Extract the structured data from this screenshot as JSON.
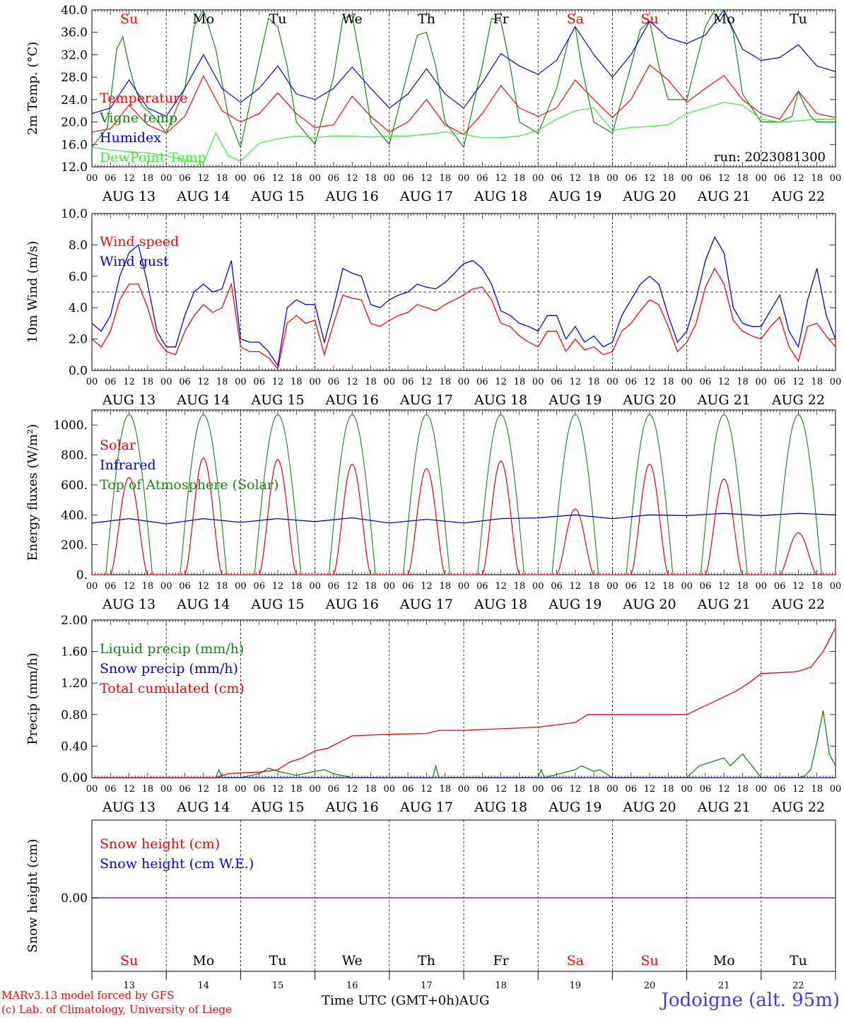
{
  "chart_data": [
    {
      "type": "line",
      "ylabel": "2m Temp. (°C)",
      "ylim": [
        12,
        40
      ],
      "yticks": [
        "12.0",
        "16.0",
        "20.0",
        "24.0",
        "28.0",
        "32.0",
        "36.0",
        "40.0"
      ],
      "annotation": "run: 2023081300",
      "day_labels_top": [
        "Su",
        "Mo",
        "Tu",
        "We",
        "Th",
        "Fr",
        "Sa",
        "Su",
        "Mo",
        "Tu"
      ],
      "series": [
        {
          "name": "Temperature",
          "color": "#ff0000",
          "x": [
            0,
            6,
            12,
            18,
            24,
            30,
            36,
            42,
            48,
            54,
            60,
            66,
            72,
            78,
            84,
            90,
            96,
            102,
            108,
            114,
            120,
            126,
            132,
            138,
            144,
            150,
            156,
            162,
            168,
            174,
            180,
            186,
            192,
            198,
            204,
            210,
            216,
            222,
            228,
            234,
            240
          ],
          "values": [
            18.2,
            18.8,
            23,
            19.5,
            18,
            21,
            28.2,
            22,
            20,
            21.5,
            25.2,
            21.5,
            19,
            19.5,
            24.6,
            21,
            18.2,
            20,
            24,
            19.5,
            17.8,
            21.5,
            26.5,
            22.5,
            21,
            22.5,
            27.5,
            24,
            20.8,
            24,
            30.2,
            27.5,
            23.5,
            26,
            28.3,
            24,
            21.5,
            20.5,
            25.5,
            21.5,
            20.8
          ]
        },
        {
          "name": "Vigne temp",
          "color": "#118811",
          "x": [
            0,
            5,
            8,
            10,
            12,
            14,
            16,
            20,
            24,
            30,
            33,
            36,
            40,
            44,
            48,
            54,
            57,
            60,
            63,
            66,
            72,
            78,
            81,
            84,
            87,
            90,
            96,
            102,
            105,
            108,
            111,
            114,
            120,
            126,
            129,
            132,
            135,
            138,
            144,
            150,
            154,
            156,
            158,
            162,
            168,
            174,
            177,
            180,
            183,
            186,
            192,
            198,
            201,
            204,
            207,
            210,
            216,
            222,
            226,
            228,
            230,
            232,
            234,
            240
          ],
          "values": [
            15.5,
            19,
            33,
            35.2,
            30,
            26,
            23,
            21,
            18,
            26,
            37,
            41,
            33,
            21,
            15.5,
            31,
            38.5,
            37,
            30,
            20,
            16,
            28,
            38.5,
            39,
            30,
            20,
            16,
            29,
            35.5,
            36,
            30,
            20,
            15.5,
            30,
            38.5,
            38,
            30,
            20,
            18,
            26,
            35,
            37,
            30,
            20,
            18,
            30,
            36.5,
            38,
            30,
            24,
            24,
            37,
            41,
            41,
            36,
            25,
            20,
            20,
            21,
            25.5,
            23,
            21,
            20,
            20
          ]
        },
        {
          "name": "Humidex",
          "color": "#0000dd",
          "x": [
            0,
            6,
            12,
            18,
            24,
            30,
            36,
            42,
            48,
            54,
            60,
            66,
            72,
            78,
            84,
            90,
            96,
            102,
            108,
            114,
            120,
            126,
            132,
            138,
            144,
            150,
            156,
            162,
            168,
            174,
            180,
            186,
            192,
            198,
            204,
            210,
            216,
            222,
            228,
            234,
            240
          ],
          "values": [
            21.5,
            22.5,
            27.5,
            22.5,
            21,
            26,
            32,
            26,
            23.5,
            26,
            30,
            25,
            24,
            26,
            29.8,
            26,
            22.5,
            25,
            29.5,
            25,
            22.5,
            27,
            32.2,
            30,
            28.5,
            31,
            37,
            32,
            28,
            32,
            38,
            35,
            34,
            35.5,
            40,
            33,
            31,
            31.5,
            33.8,
            30,
            29
          ]
        },
        {
          "name": "DewPoint Temp",
          "color": "#33ee33",
          "x": [
            0,
            6,
            12,
            18,
            24,
            30,
            36,
            40,
            44,
            48,
            54,
            60,
            66,
            72,
            78,
            84,
            90,
            96,
            102,
            108,
            114,
            120,
            126,
            132,
            138,
            144,
            150,
            156,
            162,
            168,
            174,
            180,
            186,
            192,
            198,
            204,
            210,
            216,
            222,
            228,
            234,
            240
          ],
          "values": [
            15.5,
            15,
            14.7,
            14.5,
            14,
            13.2,
            12.8,
            18,
            14,
            13,
            16.2,
            17,
            17.5,
            17.2,
            17.5,
            17.5,
            17.3,
            17.5,
            17.5,
            17.8,
            18.2,
            17.8,
            17.2,
            17.2,
            17.5,
            18.5,
            20.5,
            22,
            22.5,
            18.5,
            19,
            19.2,
            19.5,
            21.5,
            22.5,
            23.5,
            23,
            20.5,
            20,
            20.2,
            20.5,
            20.5
          ]
        }
      ]
    },
    {
      "type": "line",
      "ylabel": "10m Wind (m/s)",
      "ylim": [
        0,
        10
      ],
      "yticks": [
        "0.0",
        "2.0",
        "4.0",
        "6.0",
        "8.0",
        "10.0"
      ],
      "reference_line": 5,
      "series": [
        {
          "name": "Wind speed",
          "color": "#ff0000",
          "x": [
            0,
            3,
            6,
            9,
            12,
            15,
            18,
            21,
            24,
            27,
            30,
            33,
            36,
            39,
            42,
            45,
            48,
            51,
            54,
            57,
            60,
            63,
            66,
            69,
            72,
            75,
            78,
            81,
            84,
            87,
            90,
            93,
            96,
            99,
            102,
            105,
            108,
            111,
            114,
            117,
            120,
            123,
            126,
            129,
            132,
            135,
            138,
            141,
            144,
            147,
            150,
            153,
            156,
            159,
            162,
            165,
            168,
            171,
            174,
            177,
            180,
            183,
            186,
            189,
            192,
            195,
            198,
            201,
            204,
            207,
            210,
            213,
            216,
            219,
            222,
            225,
            228,
            231,
            234,
            237,
            240
          ],
          "values": [
            2,
            1.5,
            2.5,
            4.5,
            5.5,
            5.5,
            4,
            2,
            1.2,
            1,
            2.5,
            3.5,
            4.2,
            3.7,
            4,
            5.5,
            1.5,
            1.2,
            1.2,
            0.8,
            0.1,
            3,
            3.5,
            3,
            3.2,
            1,
            3,
            4.8,
            4.6,
            4.5,
            3,
            2.8,
            3.2,
            3.5,
            3.7,
            4.2,
            4,
            3.8,
            4.2,
            4.5,
            4.8,
            5.2,
            5.3,
            4.5,
            3,
            2.8,
            2.2,
            1.8,
            1.5,
            2.5,
            2.5,
            1.2,
            2,
            1.3,
            1.5,
            1,
            1.2,
            2.5,
            3,
            3.8,
            4.5,
            4.2,
            2.8,
            1.2,
            1.8,
            3,
            5.3,
            6.5,
            5.5,
            3.2,
            2.5,
            2.2,
            2,
            2.8,
            3.4,
            1.5,
            0.6,
            2.8,
            3,
            2.2,
            1.5
          ]
        },
        {
          "name": "Wind gust",
          "color": "#0000ee",
          "x": [
            0,
            3,
            6,
            9,
            12,
            15,
            18,
            21,
            24,
            27,
            30,
            33,
            36,
            39,
            42,
            45,
            48,
            51,
            54,
            57,
            60,
            63,
            66,
            69,
            72,
            75,
            78,
            81,
            84,
            87,
            90,
            93,
            96,
            99,
            102,
            105,
            108,
            111,
            114,
            117,
            120,
            123,
            126,
            129,
            132,
            135,
            138,
            141,
            144,
            147,
            150,
            153,
            156,
            159,
            162,
            165,
            168,
            171,
            174,
            177,
            180,
            183,
            186,
            189,
            192,
            195,
            198,
            201,
            204,
            207,
            210,
            213,
            216,
            219,
            222,
            225,
            228,
            231,
            234,
            237,
            240
          ],
          "values": [
            3,
            2.5,
            3.5,
            6,
            7.5,
            8,
            5.5,
            2.5,
            1.5,
            1.5,
            3.5,
            5,
            5.5,
            5,
            5.2,
            7,
            2,
            1.8,
            1.8,
            1.2,
            0.3,
            4,
            4.5,
            4.2,
            4.2,
            1.8,
            4,
            6.5,
            6.2,
            6,
            4.2,
            4,
            4.5,
            4.8,
            5,
            5.5,
            5.3,
            5.2,
            5.6,
            6.2,
            6.8,
            7,
            6.5,
            5.5,
            3.8,
            3.5,
            3,
            2.8,
            2.5,
            3.5,
            3.5,
            2,
            2.8,
            1.8,
            2.2,
            1.5,
            1.8,
            3.5,
            4.5,
            5.5,
            6,
            5.5,
            3.5,
            1.8,
            2.5,
            4.5,
            7,
            8.5,
            7.5,
            4,
            3,
            2.8,
            2.8,
            3.8,
            4.8,
            2.5,
            1.5,
            4.5,
            6.5,
            3.5,
            2
          ]
        }
      ]
    },
    {
      "type": "line",
      "ylabel": "Energy fluxes (W/m²)",
      "ylim": [
        0,
        1100
      ],
      "yticks": [
        "0.",
        "200.",
        "400.",
        "600.",
        "800.",
        "1000."
      ],
      "series": [
        {
          "name": "Solar",
          "color": "#ee0000",
          "day_peaks": [
            650,
            780,
            770,
            740,
            710,
            760,
            440,
            740,
            640,
            280
          ]
        },
        {
          "name": "Infrared",
          "color": "#0000dd",
          "x": [
            0,
            12,
            24,
            36,
            48,
            60,
            72,
            84,
            96,
            108,
            120,
            132,
            144,
            156,
            168,
            180,
            192,
            204,
            216,
            228,
            240
          ],
          "values": [
            345,
            375,
            340,
            375,
            350,
            375,
            355,
            380,
            345,
            370,
            345,
            375,
            380,
            400,
            375,
            400,
            395,
            410,
            395,
            410,
            400
          ]
        },
        {
          "name": "Top of Atmosphere (Solar)",
          "color": "#118811",
          "peak": 1070
        }
      ]
    },
    {
      "type": "line",
      "ylabel": "Precip (mm/h)",
      "ylim": [
        0,
        2
      ],
      "yticks": [
        "0.00",
        "0.40",
        "0.80",
        "1.20",
        "1.60",
        "2.00"
      ],
      "series": [
        {
          "name": "Liquid precip (mm/h)",
          "color": "#118811",
          "x": [
            0,
            40,
            41,
            42,
            48,
            54,
            57,
            60,
            66,
            72,
            75,
            78,
            84,
            90,
            96,
            110,
            111,
            112,
            120,
            144,
            145,
            146,
            156,
            158,
            162,
            164,
            168,
            192,
            196,
            200,
            204,
            206,
            210,
            216,
            222,
            228,
            230,
            232,
            234,
            236,
            238,
            240
          ],
          "values": [
            0,
            0,
            0.1,
            0,
            0,
            0.05,
            0.12,
            0.08,
            0.03,
            0.08,
            0.1,
            0.05,
            0,
            0,
            0,
            0,
            0.15,
            0,
            0,
            0,
            0.1,
            0,
            0.1,
            0.15,
            0.08,
            0.1,
            0,
            0,
            0.15,
            0.2,
            0.25,
            0.15,
            0.3,
            0,
            0,
            0,
            0.02,
            0.1,
            0.45,
            0.85,
            0.3,
            0.15
          ]
        },
        {
          "name": "Snow precip (mm/h)",
          "color": "#0000ee",
          "x": [
            0,
            240
          ],
          "values": [
            0,
            0
          ]
        },
        {
          "name": "Total cumulated (cm)",
          "color": "#ee0000",
          "x": [
            0,
            40,
            44,
            48,
            54,
            60,
            64,
            68,
            72,
            76,
            80,
            84,
            96,
            108,
            112,
            120,
            144,
            156,
            160,
            168,
            184,
            192,
            200,
            208,
            212,
            216,
            226,
            228,
            232,
            236,
            240
          ],
          "values": [
            0,
            0,
            0.05,
            0.06,
            0.07,
            0.1,
            0.2,
            0.25,
            0.34,
            0.37,
            0.45,
            0.53,
            0.55,
            0.56,
            0.6,
            0.6,
            0.64,
            0.7,
            0.8,
            0.8,
            0.8,
            0.8,
            0.95,
            1.1,
            1.2,
            1.32,
            1.34,
            1.35,
            1.4,
            1.6,
            1.9
          ]
        }
      ]
    },
    {
      "type": "line",
      "ylabel": "Snow height (cm)",
      "yticks": [
        "0.00"
      ],
      "series": [
        {
          "name": "Snow height (cm)",
          "color": "#ee0000",
          "x": [
            0,
            240
          ],
          "values": [
            0,
            0
          ]
        },
        {
          "name": "Snow height (cm W.E.)",
          "color": "#0000ee",
          "x": [
            0,
            240
          ],
          "values": [
            0,
            0
          ]
        }
      ],
      "day_labels_bottom": [
        "Su",
        "Mo",
        "Tu",
        "We",
        "Th",
        "Fr",
        "Sa",
        "Su",
        "Mo",
        "Tu"
      ],
      "day_numbers": [
        "13",
        "14",
        "15",
        "16",
        "17",
        "18",
        "19",
        "20",
        "21",
        "22"
      ]
    }
  ],
  "x_axis": {
    "hour_ticks": [
      "00",
      "06",
      "12",
      "18"
    ],
    "end_tick": "00",
    "dates": [
      "AUG 13",
      "AUG 14",
      "AUG 15",
      "AUG 16",
      "AUG 17",
      "AUG 18",
      "AUG 19",
      "AUG 20",
      "AUG 21",
      "AUG 22"
    ],
    "xlabel": "Time UTC (GMT+0h)",
    "month": "AUG"
  },
  "weekend_color": "#ff0000",
  "weekday_color": "#000000",
  "weekend_days": [
    0,
    6,
    7
  ],
  "footer": {
    "model": "MARv3.13 model forced by GFS",
    "credit": "(c) Lab. of Climatology, University of Liege",
    "station": "Jodoigne (alt. 95m)"
  }
}
